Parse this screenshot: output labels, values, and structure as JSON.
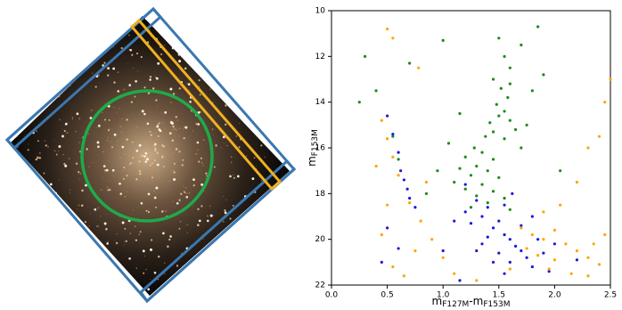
{
  "chart_data": {
    "type": "scatter",
    "xlabel": [
      "m",
      "F127M",
      "-m",
      "F153M"
    ],
    "ylabel": [
      "m",
      "F153M"
    ],
    "xlim": [
      0,
      2.5
    ],
    "ylim": [
      22,
      10
    ],
    "xticks": [
      {
        "value": 0,
        "label": "0.0"
      },
      0.5,
      {
        "value": 1,
        "label": "1.0"
      },
      1.5,
      {
        "value": 2,
        "label": "2.0"
      },
      2.5
    ],
    "yticks": [
      10,
      12,
      14,
      16,
      18,
      20,
      22
    ],
    "series": [
      {
        "color": "#1a8c1a",
        "x": [
          1.5,
          1.55,
          1.6,
          1.45,
          1.52,
          1.58,
          1.48,
          1.55,
          1.5,
          1.6,
          1.42,
          1.65,
          1.38,
          1.55,
          1.28,
          1.35,
          1.2,
          1.45,
          1.3,
          1.15,
          1.4,
          1.25,
          1.5,
          1.1,
          1.35,
          1.2,
          1.45,
          1.3,
          1.55,
          1.4,
          1.25,
          1.6,
          1.7,
          1.75,
          1.8,
          1.05,
          0.95,
          0.6,
          0.55,
          0.3,
          0.4,
          0.25,
          0.7,
          1.0,
          1.9,
          1.85,
          1.6,
          1.45,
          2.05,
          1.7,
          1.15,
          0.85
        ],
        "values": [
          11.2,
          12.0,
          12.5,
          13.0,
          13.4,
          13.8,
          14.1,
          14.4,
          14.6,
          14.8,
          14.9,
          15.2,
          15.5,
          15.6,
          16.0,
          16.2,
          16.4,
          16.5,
          16.8,
          16.9,
          17.0,
          17.2,
          17.3,
          17.5,
          17.6,
          17.8,
          17.9,
          18.1,
          18.2,
          18.4,
          18.6,
          18.7,
          16.0,
          15.0,
          13.5,
          15.8,
          17.0,
          16.5,
          15.5,
          12.0,
          13.5,
          14.0,
          12.3,
          11.3,
          12.8,
          10.7,
          13.2,
          15.3,
          17.0,
          11.5,
          14.5,
          18.0
        ]
      },
      {
        "color": "#1a1ad9",
        "x": [
          1.3,
          1.4,
          1.35,
          1.5,
          1.45,
          1.55,
          1.6,
          1.4,
          1.65,
          1.7,
          1.5,
          1.75,
          1.6,
          1.8,
          1.25,
          1.2,
          1.35,
          1.55,
          1.7,
          1.85,
          1.9,
          1.45,
          1.3,
          0.5,
          0.55,
          0.6,
          0.62,
          0.65,
          0.68,
          0.7,
          0.75,
          0.5,
          0.6,
          0.45,
          1.0,
          1.1,
          1.2,
          1.62,
          1.8,
          2.0,
          2.2,
          1.95,
          1.15,
          1.55
        ],
        "values": [
          18.3,
          18.6,
          19.0,
          19.2,
          19.5,
          19.8,
          20.0,
          19.9,
          20.3,
          20.5,
          20.6,
          20.8,
          21.0,
          21.2,
          19.3,
          18.8,
          20.2,
          18.5,
          19.4,
          20.0,
          20.6,
          21.0,
          20.5,
          14.6,
          15.4,
          16.2,
          17.0,
          17.4,
          17.8,
          18.2,
          18.6,
          19.5,
          20.4,
          21.0,
          20.5,
          19.2,
          17.6,
          18.0,
          19.0,
          20.2,
          20.9,
          21.4,
          21.8,
          21.5
        ]
      },
      {
        "color": "#ffa500",
        "x": [
          1.7,
          1.8,
          1.9,
          2.0,
          2.1,
          2.2,
          1.85,
          2.0,
          2.3,
          2.4,
          1.95,
          2.15,
          2.35,
          2.45,
          1.75,
          2.05,
          2.2,
          2.3,
          2.4,
          2.45,
          2.5,
          0.45,
          0.5,
          0.55,
          0.6,
          0.7,
          0.8,
          0.9,
          1.0,
          0.5,
          0.45,
          0.55,
          0.65,
          0.75,
          0.85,
          0.5,
          0.55,
          0.78,
          1.1,
          1.3,
          1.6,
          2.3,
          1.9,
          0.4
        ],
        "values": [
          19.5,
          19.8,
          20.0,
          19.6,
          20.2,
          20.5,
          20.7,
          20.9,
          20.8,
          21.1,
          21.3,
          21.5,
          20.2,
          19.8,
          20.4,
          18.5,
          17.5,
          16.0,
          15.5,
          14.0,
          13.0,
          14.8,
          15.6,
          16.4,
          17.2,
          18.4,
          19.2,
          20.0,
          20.8,
          18.5,
          19.8,
          21.2,
          21.6,
          20.5,
          17.5,
          10.8,
          11.2,
          12.5,
          21.5,
          21.8,
          21.3,
          21.6,
          18.8,
          16.8
        ]
      }
    ]
  }
}
